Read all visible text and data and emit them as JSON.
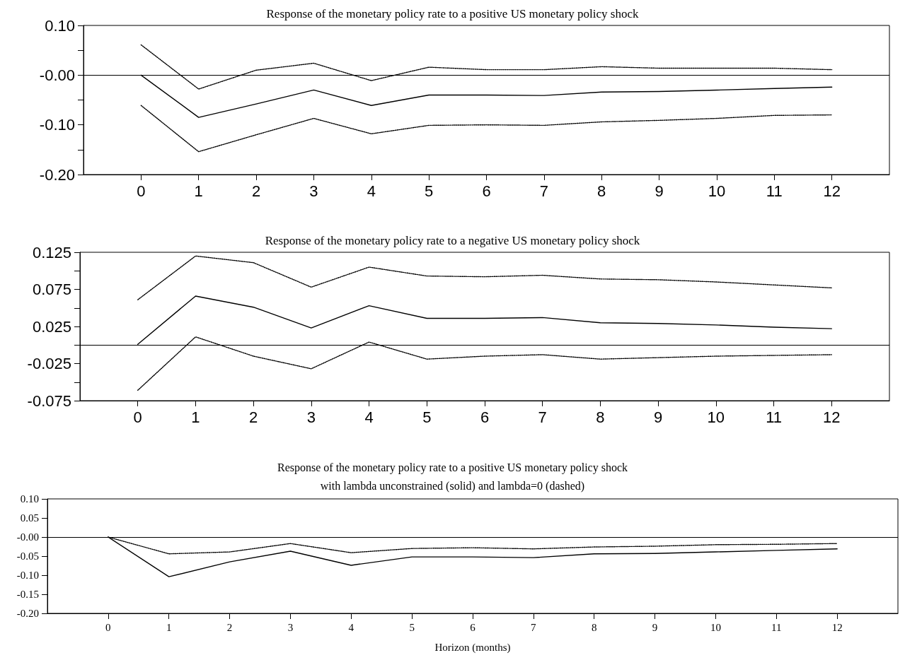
{
  "chart_data": [
    {
      "type": "line",
      "title": "Response of the monetary policy rate to a positive US monetary policy shock",
      "x": [
        0,
        1,
        2,
        3,
        4,
        5,
        6,
        7,
        8,
        9,
        10,
        11,
        12
      ],
      "xlim": [
        -1,
        13
      ],
      "xticks": [
        0,
        1,
        2,
        3,
        4,
        5,
        6,
        7,
        8,
        9,
        10,
        11,
        12
      ],
      "ylim": [
        -0.2,
        0.1
      ],
      "yticks": [
        {
          "value": 0.1,
          "label": "0.10"
        },
        {
          "value": 0.05,
          "label": null
        },
        {
          "value": 0,
          "label": "-0.00"
        },
        {
          "value": -0.05,
          "label": null
        },
        {
          "value": -0.1,
          "label": "-0.10"
        },
        {
          "value": -0.15,
          "label": null
        },
        {
          "value": -0.2,
          "label": "-0.20"
        }
      ],
      "series": [
        {
          "color": "#000000",
          "line_style": "solid",
          "values": [
            0,
            -0.085,
            -0.058,
            -0.03,
            -0.061,
            -0.04,
            -0.04,
            -0.041,
            -0.034,
            -0.033,
            -0.03,
            -0.027,
            -0.024
          ]
        },
        {
          "color": "#000000",
          "line_style": "dotted",
          "values": [
            0.061,
            -0.028,
            0.01,
            0.024,
            -0.011,
            0.016,
            0.011,
            0.011,
            0.017,
            0.014,
            0.014,
            0.014,
            0.011
          ]
        },
        {
          "color": "#000000",
          "line_style": "dotted",
          "values": [
            -0.061,
            -0.154,
            -0.12,
            -0.087,
            -0.118,
            -0.101,
            -0.1,
            -0.101,
            -0.094,
            -0.091,
            -0.087,
            -0.081,
            -0.08
          ]
        }
      ],
      "ref_lines": [
        {
          "axis": "y",
          "value": 0,
          "color": "#000000"
        }
      ],
      "marker": "none"
    },
    {
      "type": "line",
      "title": "Response of the monetary policy rate to a negative US monetary policy shock",
      "x": [
        0,
        1,
        2,
        3,
        4,
        5,
        6,
        7,
        8,
        9,
        10,
        11,
        12
      ],
      "xlim": [
        -1,
        13
      ],
      "xticks": [
        0,
        1,
        2,
        3,
        4,
        5,
        6,
        7,
        8,
        9,
        10,
        11,
        12
      ],
      "ylim": [
        -0.075,
        0.125
      ],
      "yticks": [
        0.125,
        {
          "value": 0.1,
          "label": null
        },
        0.075,
        {
          "value": 0.05,
          "label": null
        },
        0.025,
        {
          "value": 0,
          "label": null
        },
        -0.025,
        {
          "value": -0.05,
          "label": null
        },
        -0.075
      ],
      "series": [
        {
          "color": "#000000",
          "line_style": "solid",
          "values": [
            0.001,
            0.066,
            0.051,
            0.023,
            0.053,
            0.036,
            0.036,
            0.037,
            0.03,
            0.029,
            0.027,
            0.024,
            0.022
          ]
        },
        {
          "color": "#000000",
          "line_style": "dotted",
          "values": [
            0.061,
            0.12,
            0.111,
            0.078,
            0.105,
            0.093,
            0.092,
            0.094,
            0.089,
            0.088,
            0.085,
            0.081,
            0.077
          ]
        },
        {
          "color": "#000000",
          "line_style": "dotted",
          "values": [
            -0.061,
            0.011,
            -0.015,
            -0.032,
            0.004,
            -0.019,
            -0.015,
            -0.013,
            -0.019,
            -0.017,
            -0.015,
            -0.014,
            -0.013
          ]
        }
      ],
      "ref_lines": [
        {
          "axis": "y",
          "value": 0,
          "color": "#000000"
        }
      ],
      "marker": "none"
    },
    {
      "type": "line",
      "title": "Response of the monetary policy rate to a positive US monetary policy shock",
      "subtitle": "with lambda unconstrained (solid) and lambda=0 (dashed)",
      "xlabel": "Horizon (months)",
      "x": [
        0,
        1,
        2,
        3,
        4,
        5,
        6,
        7,
        8,
        9,
        10,
        11,
        12
      ],
      "xlim": [
        -1,
        13
      ],
      "xticks": [
        0,
        1,
        2,
        3,
        4,
        5,
        6,
        7,
        8,
        9,
        10,
        11,
        12
      ],
      "ylim": [
        -0.2,
        0.1
      ],
      "yticks": [
        {
          "value": 0.1,
          "label": "0.10"
        },
        {
          "value": 0.05,
          "label": "0.05"
        },
        {
          "value": 0,
          "label": "-0.00"
        },
        {
          "value": -0.05,
          "label": "-0.05"
        },
        {
          "value": -0.1,
          "label": "-0.10"
        },
        {
          "value": -0.15,
          "label": "-0.15"
        },
        {
          "value": -0.2,
          "label": "-0.20"
        }
      ],
      "series": [
        {
          "color": "#000000",
          "line_style": "solid",
          "values": [
            0,
            -0.104,
            -0.065,
            -0.037,
            -0.074,
            -0.052,
            -0.052,
            -0.054,
            -0.044,
            -0.043,
            -0.039,
            -0.035,
            -0.031
          ]
        },
        {
          "color": "#000000",
          "line_style": "dotted",
          "values": [
            0,
            -0.044,
            -0.039,
            -0.017,
            -0.041,
            -0.03,
            -0.028,
            -0.031,
            -0.026,
            -0.024,
            -0.02,
            -0.019,
            -0.017
          ]
        }
      ],
      "ref_lines": [
        {
          "axis": "y",
          "value": 0,
          "color": "#000000"
        }
      ],
      "marker": "none"
    }
  ]
}
